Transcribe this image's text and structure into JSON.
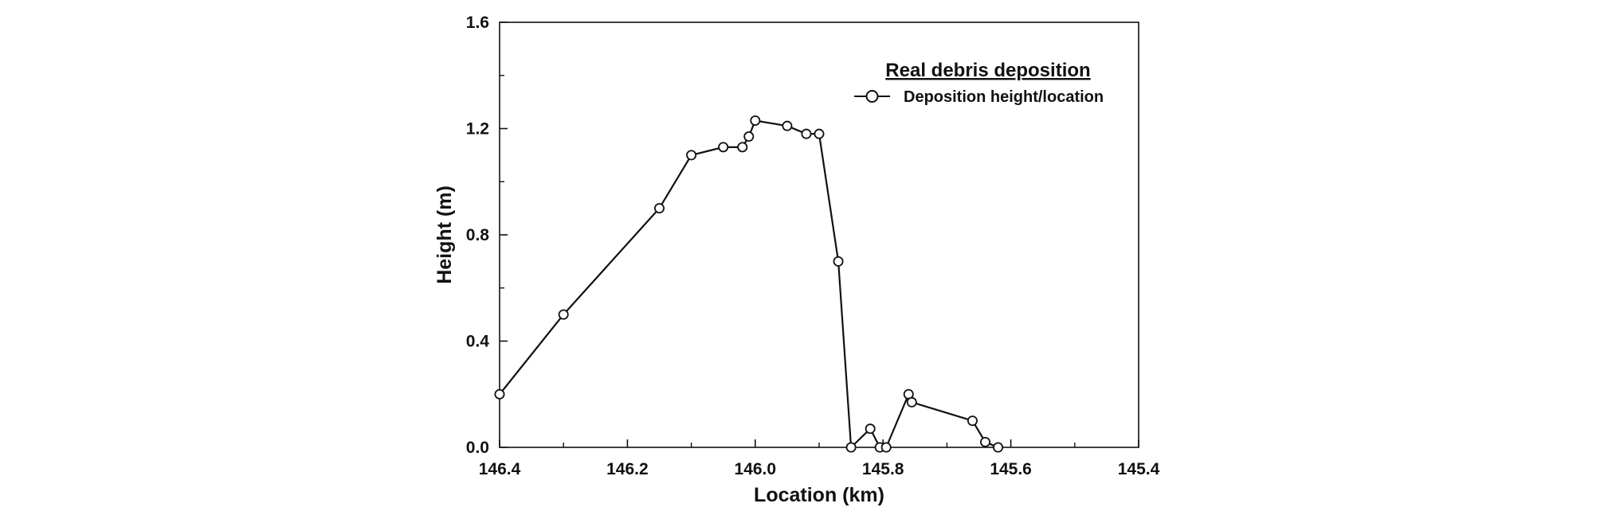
{
  "chart_data": {
    "type": "line",
    "title": "",
    "xlabel": "Location (km)",
    "ylabel": "Height (m)",
    "xlim": [
      146.4,
      145.4
    ],
    "ylim": [
      0.0,
      1.6
    ],
    "x_reversed": true,
    "grid": false,
    "x_ticks": [
      146.4,
      146.2,
      146.0,
      145.8,
      145.6,
      145.4
    ],
    "x_tick_labels": [
      "146.4",
      "146.2",
      "146.0",
      "145.8",
      "145.6",
      "145.4"
    ],
    "y_ticks": [
      0.0,
      0.4,
      0.8,
      1.2,
      1.6
    ],
    "y_tick_labels": [
      "0.0",
      "0.4",
      "0.8",
      "1.2",
      "1.6"
    ],
    "legend": {
      "title": "Real debris deposition",
      "placement": "top-right"
    },
    "series": [
      {
        "name": "Deposition height/location",
        "color": "#111111",
        "marker": "open-circle",
        "x": [
          146.4,
          146.3,
          146.15,
          146.1,
          146.05,
          146.02,
          146.01,
          146.0,
          145.95,
          145.92,
          145.9,
          145.87,
          145.85,
          145.82,
          145.805,
          145.795,
          145.76,
          145.755,
          145.66,
          145.64,
          145.62
        ],
        "y": [
          0.2,
          0.5,
          0.9,
          1.1,
          1.13,
          1.13,
          1.17,
          1.23,
          1.21,
          1.18,
          1.18,
          0.7,
          0.0,
          0.07,
          0.0,
          0.0,
          0.2,
          0.17,
          0.1,
          0.02,
          0.0
        ]
      }
    ]
  }
}
